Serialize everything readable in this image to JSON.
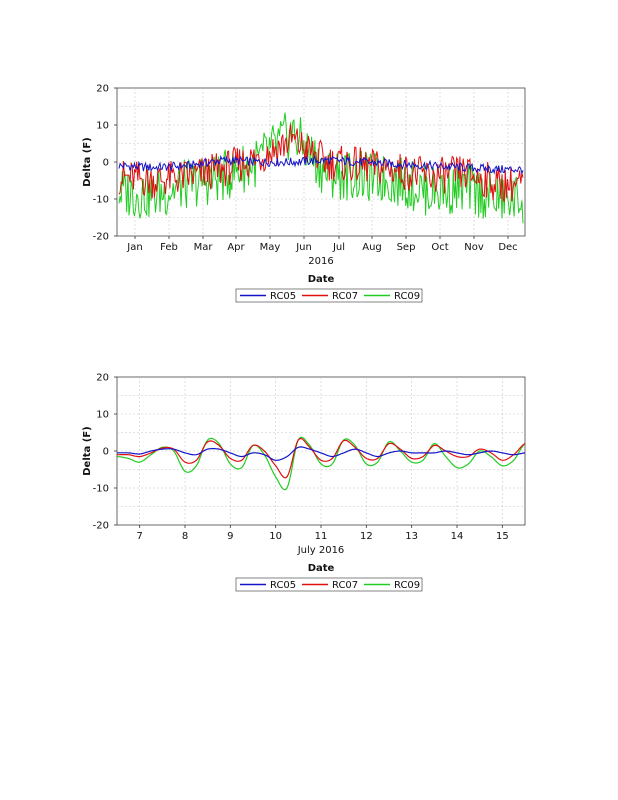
{
  "chart_data": [
    {
      "type": "line",
      "title": "",
      "ylabel": "Delta (F)",
      "xlabel": "Date",
      "x_sublabel": "2016",
      "ylim": [
        -20,
        20
      ],
      "yticks": [
        20,
        10,
        0,
        -10,
        -20
      ],
      "categories": [
        "Jan",
        "Feb",
        "Mar",
        "Apr",
        "May",
        "Jun",
        "Jul",
        "Aug",
        "Sep",
        "Oct",
        "Nov",
        "Dec"
      ],
      "x": [
        0,
        1,
        2,
        3,
        4,
        5,
        6,
        7,
        8,
        9,
        10,
        11
      ],
      "series": [
        {
          "name": "RC05",
          "color": "#1414c8",
          "values": [
            -1,
            -1.5,
            -1,
            0.5,
            0,
            0,
            0.5,
            0,
            -0.5,
            -1,
            -1.5,
            -2
          ]
        },
        {
          "name": "RC07",
          "color": "#e01010",
          "values": [
            -4,
            -5,
            -4,
            -2,
            1,
            6,
            0,
            -1,
            -2,
            -4,
            -3,
            -6
          ]
        },
        {
          "name": "RC09",
          "color": "#22cc22",
          "values": [
            -8,
            -9,
            -6,
            -4,
            0,
            8,
            -3,
            -4,
            -5,
            -8,
            -7,
            -10
          ]
        }
      ],
      "legend": "bottom"
    },
    {
      "type": "line",
      "title": "",
      "ylabel": "Delta (F)",
      "xlabel": "Date",
      "x_sublabel": "July 2016",
      "ylim": [
        -20,
        20
      ],
      "yticks": [
        20,
        10,
        0,
        -10,
        -20
      ],
      "categories": [
        "7",
        "8",
        "9",
        "10",
        "11",
        "12",
        "13",
        "14",
        "15"
      ],
      "xlim": [
        6.5,
        15.5
      ],
      "x": [
        6.5,
        6.75,
        7.0,
        7.25,
        7.5,
        7.75,
        8.0,
        8.25,
        8.5,
        8.75,
        9.0,
        9.25,
        9.5,
        9.75,
        10.0,
        10.25,
        10.5,
        10.75,
        11.0,
        11.25,
        11.5,
        11.75,
        12.0,
        12.25,
        12.5,
        12.75,
        13.0,
        13.25,
        13.5,
        13.75,
        14.0,
        14.25,
        14.5,
        14.75,
        15.0,
        15.25,
        15.5
      ],
      "series": [
        {
          "name": "RC05",
          "color": "#1414c8",
          "values": [
            -0.5,
            -0.5,
            -0.8,
            0,
            0.5,
            0.5,
            -0.5,
            -1,
            0.5,
            0.5,
            -0.5,
            -1.5,
            -0.5,
            -1,
            -2.5,
            -1.5,
            1,
            0.5,
            -0.5,
            -1.5,
            -0.5,
            0.5,
            -0.5,
            -1.5,
            -0.5,
            0,
            -0.5,
            -0.5,
            -0.5,
            0,
            -0.5,
            -1,
            -0.5,
            0,
            -0.5,
            -1,
            -0.5
          ]
        },
        {
          "name": "RC07",
          "color": "#e01010",
          "values": [
            -1,
            -1,
            -1.5,
            -0.5,
            0.8,
            0.5,
            -3,
            -2.5,
            2.5,
            1.5,
            -2,
            -2.5,
            1.5,
            0,
            -4,
            -7,
            3,
            1,
            -2.5,
            -2,
            2.8,
            1,
            -2,
            -2,
            2,
            0.5,
            -2,
            -1.5,
            1.5,
            0,
            -1.5,
            -1.5,
            0.5,
            -0.5,
            -2.5,
            -1,
            2
          ]
        },
        {
          "name": "RC09",
          "color": "#22cc22",
          "values": [
            -1.5,
            -2,
            -3,
            -1,
            1,
            0,
            -5.5,
            -4,
            3,
            2,
            -3.5,
            -4.5,
            1.5,
            -1,
            -7,
            -10,
            3,
            1.5,
            -3.5,
            -3.5,
            3,
            1.5,
            -3.5,
            -3,
            2.5,
            0,
            -3,
            -2.5,
            2,
            -1.5,
            -4.5,
            -3.5,
            0,
            -1.5,
            -4,
            -2.5,
            2
          ]
        }
      ],
      "legend": "bottom"
    }
  ]
}
